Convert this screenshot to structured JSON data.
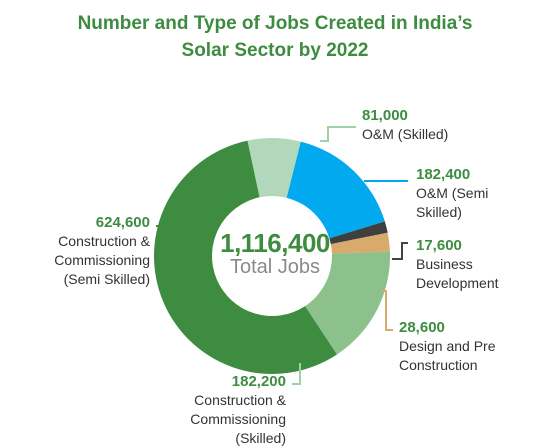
{
  "title_line1": "Number and Type of Jobs Created in India’s",
  "title_line2": "Solar Sector by 2022",
  "center": {
    "total": "1,116,400",
    "label": "Total Jobs"
  },
  "chart_data": {
    "type": "pie",
    "donut": true,
    "title": "Number and Type of Jobs Created in India’s Solar Sector by 2022",
    "total": 1116400,
    "slices": [
      {
        "value": 81000,
        "value_label": "81,000",
        "label": "O&M (Skilled)",
        "color": "#b2d8bc"
      },
      {
        "value": 182400,
        "value_label": "182,400",
        "label": "O&M (Semi Skilled)",
        "color": "#03a9ee"
      },
      {
        "value": 17600,
        "value_label": "17,600",
        "label": "Business Development",
        "color": "#3f3f3f"
      },
      {
        "value": 28600,
        "value_label": "28,600",
        "label": "Design and Pre Construction",
        "color": "#d8aa6c"
      },
      {
        "value": 182200,
        "value_label": "182,200",
        "label": "Construction & Commissioning (Skilled)",
        "color": "#8cc18c"
      },
      {
        "value": 624600,
        "value_label": "624,600",
        "label": "Construction & Commissioning (Semi Skilled)",
        "color": "#3d8c40"
      }
    ],
    "leader_colors": {
      "green_light": "#9cd2a6",
      "blue": "#03a9ee",
      "dark": "#444444",
      "tan": "#d8aa6c",
      "green": "#3d8c40"
    }
  }
}
